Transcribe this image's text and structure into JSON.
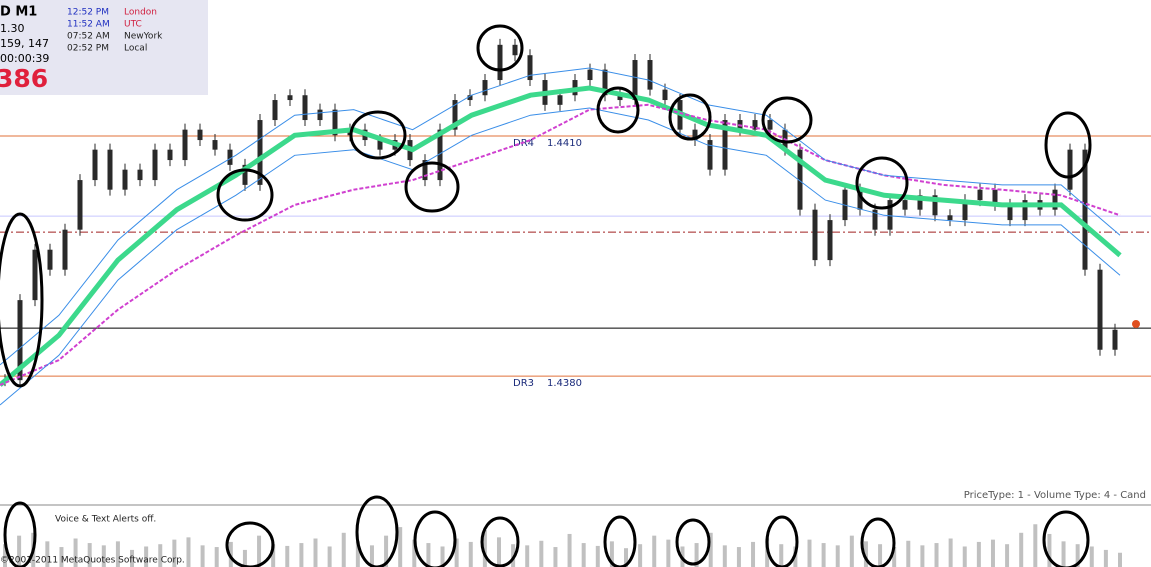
{
  "info_box": {
    "symbol": "D  M1",
    "line2": "1.30",
    "line3": "159, 147",
    "timer": "00:00:39",
    "big": "386"
  },
  "clock": [
    {
      "time": "12:52 PM",
      "city": "London"
    },
    {
      "time": "11:52 AM",
      "city": "UTC"
    },
    {
      "time": "07:52 AM",
      "city": "NewYork"
    },
    {
      "time": "02:52 PM",
      "city": "Local"
    }
  ],
  "status_text": "PriceType: 1 - Volume Type: 4 - Cand",
  "alerts_text": "Voice & Text Alerts off.",
  "copyright": "©2001-2011 MetaQuotes Software Corp.",
  "chart_data": [
    {
      "type": "candlestick",
      "color": "#2a2a2a",
      "ylim": [
        1.43639,
        1.4427
      ],
      "values": [
        1.43795,
        1.43895,
        1.43958,
        1.43933,
        1.43983,
        1.44045,
        1.44083,
        1.44033,
        1.44058,
        1.44045,
        1.44083,
        1.4407,
        1.44108,
        1.44095,
        1.44083,
        1.44064,
        1.44039,
        1.4412,
        1.44145,
        1.44151,
        1.4412,
        1.44133,
        1.44101,
        1.44108,
        1.44095,
        1.44083,
        1.44095,
        1.4407,
        1.44045,
        1.44108,
        1.44145,
        1.44151,
        1.4417,
        1.44214,
        1.44201,
        1.4417,
        1.44139,
        1.44151,
        1.4417,
        1.44183,
        1.44151,
        1.44145,
        1.44195,
        1.44158,
        1.44145,
        1.44108,
        1.44095,
        1.44058,
        1.4412,
        1.44108,
        1.4412,
        1.44108,
        1.44083,
        1.44008,
        1.43945,
        1.43995,
        1.44033,
        1.44008,
        1.43983,
        1.4402,
        1.44008,
        1.44026,
        1.44001,
        1.43995,
        1.4402,
        1.44033,
        1.44014,
        1.43995,
        1.4402,
        1.44008,
        1.44033,
        1.44083,
        1.43933,
        1.43833,
        1.43858
      ],
      "series": [
        {
          "color": "#3cd98c",
          "width": 5,
          "values": [
            1.43789,
            1.43851,
            1.43945,
            1.44008,
            1.44051,
            1.44101,
            1.44108,
            1.44083,
            1.44126,
            1.44151,
            1.4416,
            1.44145,
            1.44114,
            1.44101,
            1.44045,
            1.44026,
            1.4402,
            1.44014,
            1.44014,
            1.43951
          ]
        },
        {
          "color": "#d040d0",
          "width": 2,
          "values": [
            1.43789,
            1.4382,
            1.43883,
            1.43933,
            1.43976,
            1.44014,
            1.44033,
            1.44045,
            1.4407,
            1.44095,
            1.44133,
            1.44139,
            1.4412,
            1.44108,
            1.4407,
            1.44051,
            1.44039,
            1.44033,
            1.44026,
            1.44001
          ]
        },
        {
          "color": "#3a8ee8",
          "width": 1,
          "values": [
            1.43814,
            1.43876,
            1.4397,
            1.44033,
            1.44076,
            1.44126,
            1.44133,
            1.44108,
            1.44151,
            1.44176,
            1.44185,
            1.4417,
            1.44139,
            1.44126,
            1.4407,
            1.44051,
            1.44045,
            1.44039,
            1.44039,
            1.43976
          ]
        },
        {
          "color": "#3a8ee8",
          "width": 1,
          "values": [
            1.43764,
            1.43826,
            1.4392,
            1.43983,
            1.44026,
            1.44076,
            1.44083,
            1.44058,
            1.44101,
            1.44126,
            1.44135,
            1.4412,
            1.44089,
            1.44076,
            1.4402,
            1.44001,
            1.43995,
            1.43989,
            1.43989,
            1.43926
          ]
        }
      ],
      "levels": [
        {
          "name": "DR4",
          "value": 1.441,
          "value_label": "1.4410",
          "color": "#e0703a"
        },
        {
          "name": "DR3",
          "value": 1.438,
          "value_label": "1.4380",
          "color": "#e0703a"
        },
        {
          "value": 1.4386,
          "color": "#000000"
        },
        {
          "value": 1.4398,
          "color": "#a02020"
        },
        {
          "value": 1.44,
          "color": "#c8c8ff"
        }
      ]
    },
    {
      "type": "bar",
      "color": "#c0c0c0",
      "ylim": [
        0,
        100
      ],
      "values": [
        40,
        55,
        60,
        45,
        35,
        50,
        42,
        38,
        45,
        30,
        36,
        40,
        48,
        52,
        38,
        35,
        44,
        30,
        55,
        40,
        37,
        42,
        50,
        36,
        60,
        45,
        38,
        55,
        70,
        48,
        42,
        36,
        50,
        44,
        65,
        52,
        40,
        38,
        46,
        35,
        58,
        42,
        37,
        45,
        33,
        40,
        55,
        48,
        36,
        42,
        60,
        38,
        35,
        44,
        50,
        40,
        36,
        48,
        42,
        38,
        55,
        45,
        40,
        35,
        46,
        38,
        42,
        50,
        36,
        44,
        48,
        40,
        60,
        75,
        58,
        45,
        40,
        36,
        30,
        25
      ]
    }
  ]
}
